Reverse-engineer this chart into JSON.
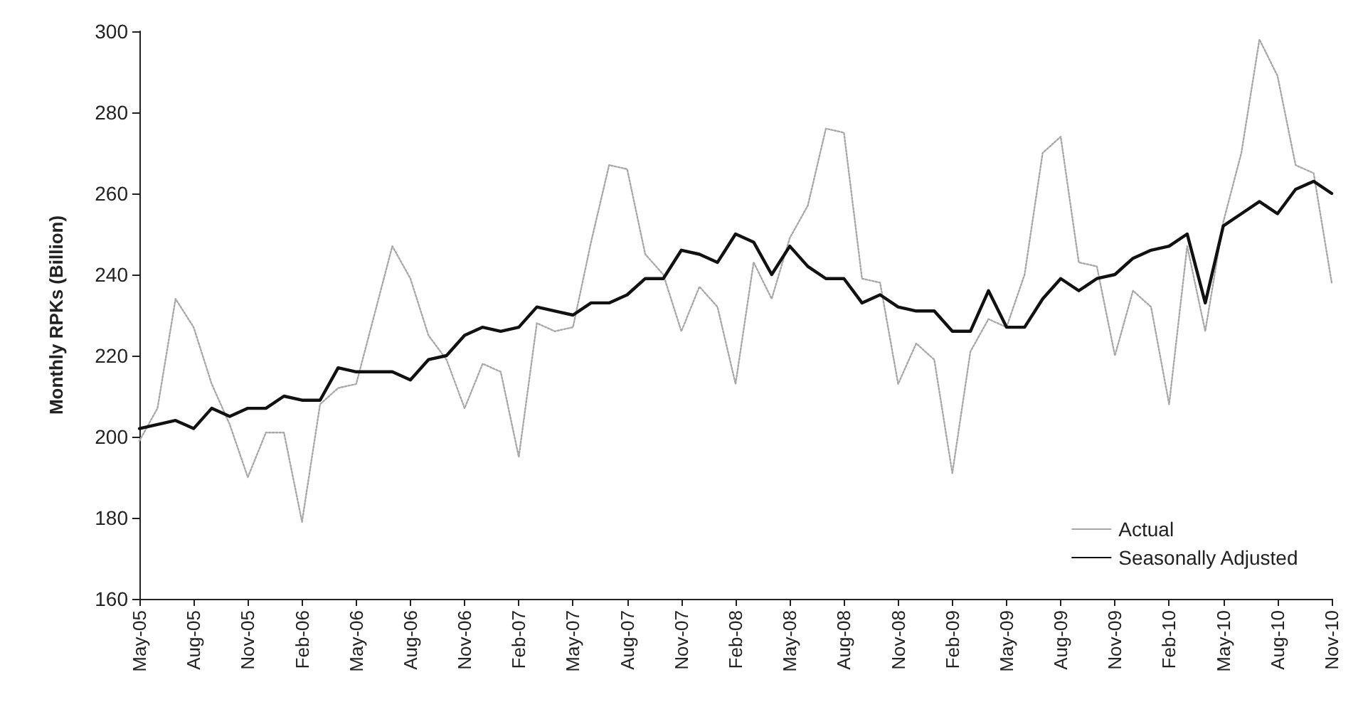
{
  "chart_data": {
    "type": "line",
    "ylabel": "Monthly RPKs (Billion)",
    "categories": [
      "May-05",
      null,
      null,
      "Aug-05",
      null,
      null,
      "Nov-05",
      null,
      null,
      "Feb-06",
      null,
      null,
      "May-06",
      null,
      null,
      "Aug-06",
      null,
      null,
      "Nov-06",
      null,
      null,
      "Feb-07",
      null,
      null,
      "May-07",
      null,
      null,
      "Aug-07",
      null,
      null,
      "Nov-07",
      null,
      null,
      "Feb-08",
      null,
      null,
      "May-08",
      null,
      null,
      "Aug-08",
      null,
      null,
      "Nov-08",
      null,
      null,
      "Feb-09",
      null,
      null,
      "May-09",
      null,
      null,
      "Aug-09",
      null,
      null,
      "Nov-09",
      null,
      null,
      "Feb-10",
      null,
      null,
      "May-10",
      null,
      null,
      "Aug-10",
      null,
      null,
      "Nov-10"
    ],
    "series": [
      {
        "name": "Actual",
        "color": "#a8a8a8",
        "line_style": "dotted",
        "values": [
          199,
          207,
          234,
          227,
          213,
          203,
          190,
          201,
          201,
          179,
          208,
          212,
          213,
          230,
          247,
          239,
          225,
          219,
          207,
          218,
          216,
          195,
          228,
          226,
          227,
          248,
          267,
          266,
          245,
          240,
          226,
          237,
          232,
          213,
          243,
          234,
          249,
          257,
          276,
          275,
          239,
          238,
          213,
          223,
          219,
          191,
          221,
          229,
          227,
          240,
          270,
          274,
          243,
          242,
          220,
          236,
          232,
          208,
          247,
          226,
          253,
          270,
          298,
          289,
          267,
          265,
          238
        ]
      },
      {
        "name": "Seasonally Adjusted",
        "color": "#111111",
        "line_style": "solid",
        "values": [
          202,
          203,
          204,
          202,
          207,
          205,
          207,
          207,
          210,
          209,
          209,
          217,
          216,
          216,
          216,
          214,
          219,
          220,
          225,
          227,
          226,
          227,
          232,
          231,
          230,
          233,
          233,
          235,
          239,
          239,
          246,
          245,
          243,
          250,
          248,
          240,
          247,
          242,
          239,
          239,
          233,
          235,
          232,
          231,
          231,
          226,
          226,
          236,
          227,
          227,
          234,
          239,
          236,
          239,
          240,
          244,
          246,
          247,
          250,
          233,
          252,
          255,
          258,
          255,
          261,
          263,
          260
        ]
      }
    ],
    "ylim": [
      160,
      300
    ],
    "yticks": [
      160,
      180,
      200,
      220,
      240,
      260,
      280,
      300
    ],
    "grid": false,
    "legend": "bottom right",
    "marker": "none"
  }
}
